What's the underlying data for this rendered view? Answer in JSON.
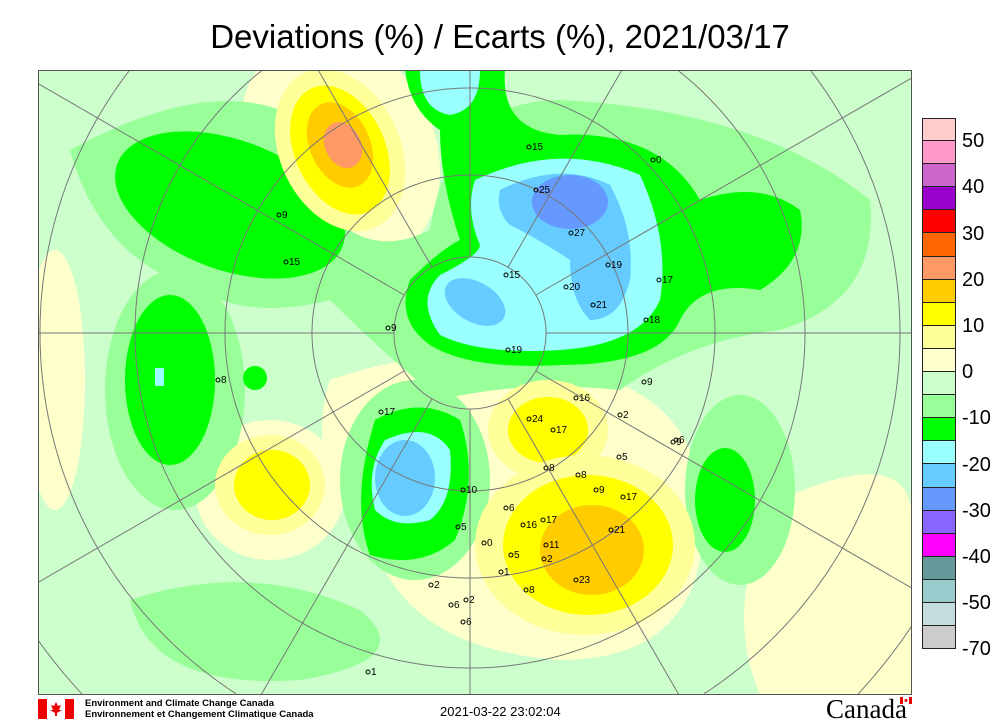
{
  "title": "Deviations (%) / Ecarts (%), 2021/03/17",
  "legend": {
    "colors": [
      "#ffcccc",
      "#ff99cc",
      "#cc66cc",
      "#9900cc",
      "#ff0000",
      "#ff6600",
      "#ff9966",
      "#ffcc00",
      "#ffff00",
      "#ffff99",
      "#ffffcc",
      "#ccffcc",
      "#99ff99",
      "#00ff00",
      "#99ffff",
      "#66ccff",
      "#6699ff",
      "#8866ff",
      "#ff00ff",
      "#669999",
      "#99cccc",
      "#c4dede",
      "#cccccc"
    ],
    "labels": [
      "50",
      "40",
      "30",
      "20",
      "10",
      "0",
      "-10",
      "-20",
      "-30",
      "-40",
      "-50",
      "-70"
    ]
  },
  "stations": [
    "15",
    "0",
    "25",
    "27",
    "19",
    "15",
    "20",
    "21",
    "17",
    "18",
    "19",
    "9",
    "9",
    "15",
    "8",
    "9",
    "6",
    "17",
    "24",
    "17",
    "16",
    "2",
    "9",
    "5",
    "8",
    "8",
    "9",
    "17",
    "10",
    "5",
    "6",
    "16",
    "17",
    "0",
    "11",
    "21",
    "2",
    "5",
    "1",
    "23",
    "2",
    "8",
    "6",
    "2",
    "6",
    "1"
  ],
  "footer": {
    "org_en": "Environment and Climate Change Canada",
    "org_fr": "Environnement et Changement Climatique Canada",
    "timestamp": "2021-03-22 23:02:04",
    "wordmark": "Canada"
  }
}
